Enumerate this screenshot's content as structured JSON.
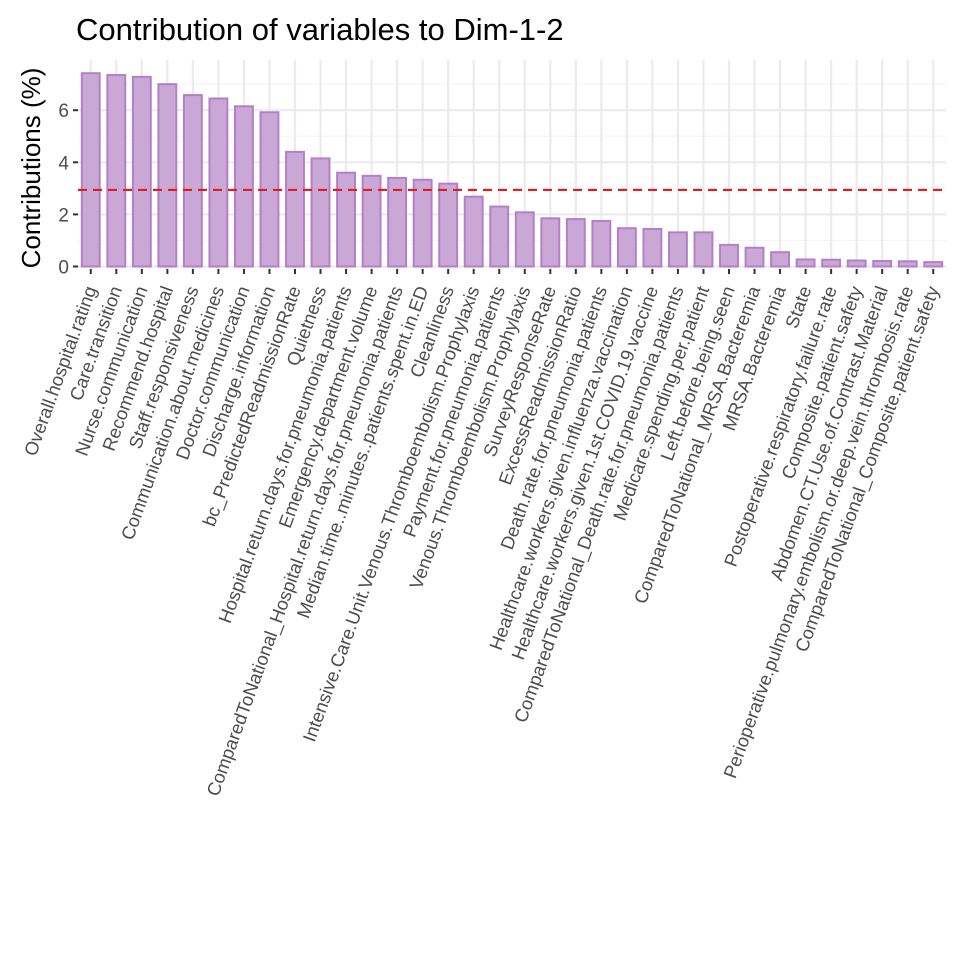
{
  "chart_data": {
    "type": "bar",
    "title": "Contribution of variables to Dim-1-2",
    "ylabel": "Contributions (%)",
    "xlabel": "",
    "ylim": [
      0,
      7.7
    ],
    "yticks": [
      0,
      2,
      4,
      6
    ],
    "grid": true,
    "reference_line": 2.94,
    "colors": {
      "bar_fill": "#c9a8d5",
      "bar_stroke": "#b57fc8",
      "reference_line": "#e41a1c",
      "grid_major": "#ebebeb",
      "grid_minor": "#f5f5f5"
    },
    "categories": [
      "Overall.hospital.rating",
      "Care.transition",
      "Nurse.communication",
      "Recommend.hospital",
      "Staff.responsiveness",
      "Communication.about.medicines",
      "Doctor.communication",
      "Discharge.information",
      "bc_PredictedReadmissionRate",
      "Quietness",
      "Hospital.return.days.for.pneumonia.patients",
      "Emergency.department.volume",
      "ComparedToNational_Hospital.return.days.for.pneumonia.patients",
      "Median.time..minutes..patients.spent.in.ED",
      "Cleanliness",
      "Intensive.Care.Unit.Venous.Thromboembolism.Prophylaxis",
      "Payment.for.pneumonia.patients",
      "Venous.Thromboembolism.Prophylaxis",
      "SurveyResponseRate",
      "ExcessReadmissionRatio",
      "Death.rate.for.pneumonia.patients",
      "Healthcare.workers.given.influenza.vaccination",
      "Healthcare.workers.given.1st.COVID.19.vaccine",
      "ComparedToNational_Death.rate.for.pneumonia.patients",
      "Medicare.spending.per.patient",
      "Left.before.being.seen",
      "ComparedToNational_MRSA.Bacteremia",
      "MRSA.Bacteremia",
      "State",
      "Postoperative.respiratory.failure.rate",
      "Composite.patient.safety",
      "Abdomen.CT.Use.of.Contrast.Material",
      "Perioperative.pulmonary.embolism.or.deep.vein.thrombosis.rate",
      "ComparedToNational_Composite.patient.safety"
    ],
    "values": [
      7.42,
      7.35,
      7.28,
      7.0,
      6.58,
      6.45,
      6.15,
      5.92,
      4.4,
      4.15,
      3.6,
      3.48,
      3.4,
      3.33,
      3.18,
      2.68,
      2.3,
      2.08,
      1.85,
      1.82,
      1.75,
      1.47,
      1.44,
      1.31,
      1.31,
      0.83,
      0.72,
      0.55,
      0.27,
      0.26,
      0.23,
      0.21,
      0.2,
      0.17
    ]
  }
}
